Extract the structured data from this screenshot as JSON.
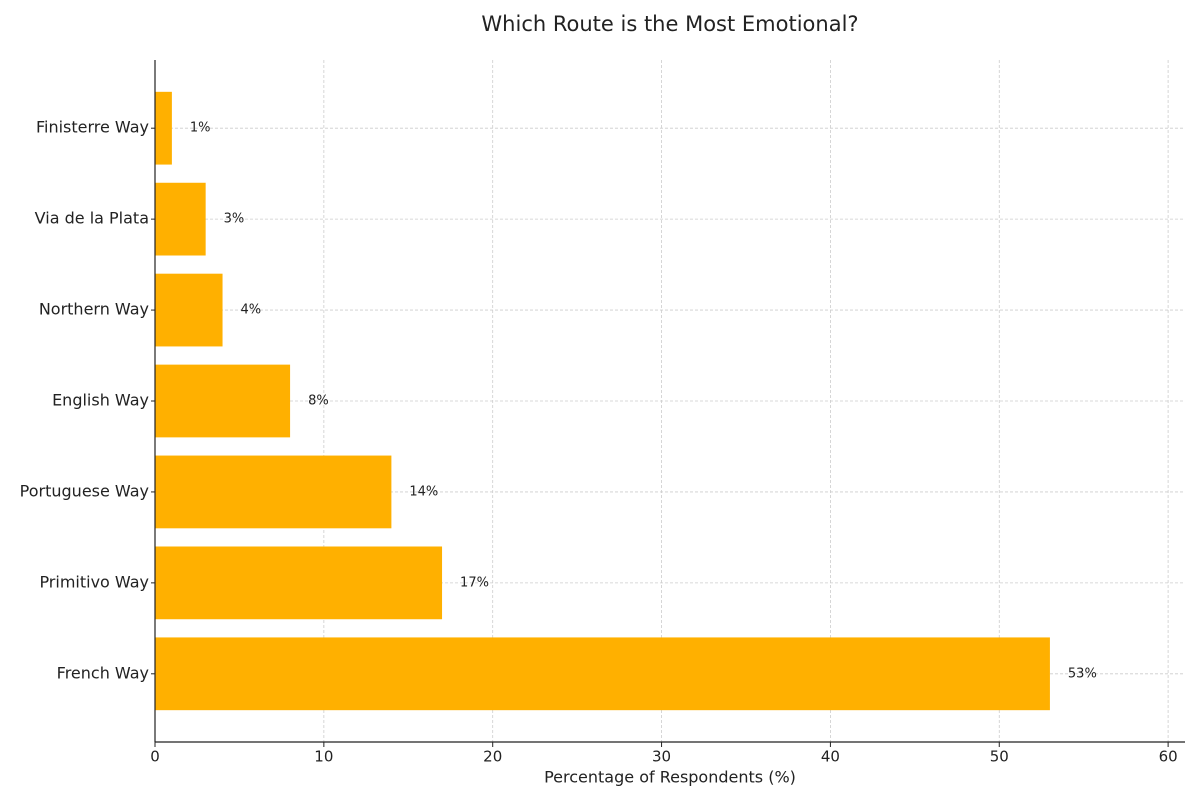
{
  "chart_data": {
    "type": "barh",
    "title": "Which Route is the Most Emotional?",
    "xlabel": "Percentage of Respondents (%)",
    "categories": [
      "Finisterre Way",
      "Via de la Plata",
      "Northern Way",
      "English Way",
      "Portuguese Way",
      "Primitivo Way",
      "French Way"
    ],
    "values": [
      1,
      3,
      4,
      8,
      14,
      17,
      53
    ],
    "value_labels": [
      "1%",
      "3%",
      "4%",
      "8%",
      "14%",
      "17%",
      "53%"
    ],
    "color": "#ffb000",
    "xlim": [
      0,
      61
    ],
    "xticks": [
      0,
      10,
      20,
      30,
      40,
      50,
      60
    ],
    "grid": true
  }
}
